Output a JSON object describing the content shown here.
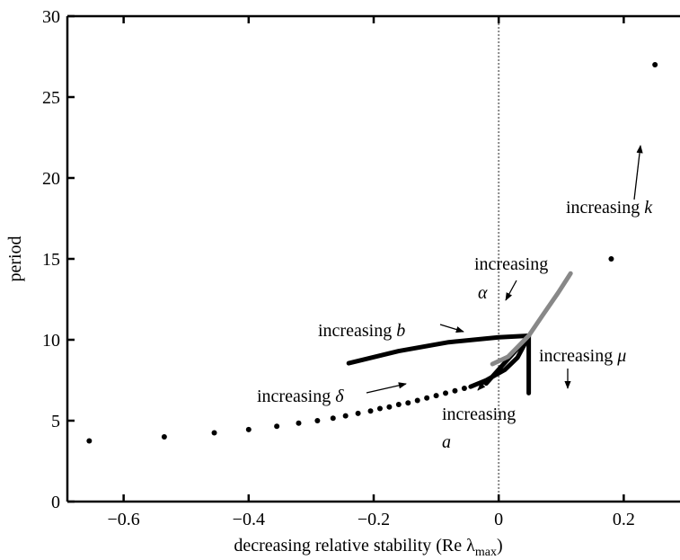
{
  "chart_data": {
    "type": "scatter",
    "xlabel": "decreasing relative stability (Re λ",
    "xlabel_sub": "max",
    "xlabel_close": ")",
    "ylabel": "period",
    "xlim": [
      -0.69,
      0.29
    ],
    "ylim": [
      0,
      30
    ],
    "xticks": [
      -0.6,
      -0.4,
      -0.2,
      0,
      0.2
    ],
    "xtick_labels": [
      "−0.6",
      "−0.4",
      "−0.2",
      "0",
      "0.2"
    ],
    "yticks": [
      0,
      5,
      10,
      15,
      20,
      25,
      30
    ],
    "ytick_labels": [
      "0",
      "5",
      "10",
      "15",
      "20",
      "25",
      "30"
    ],
    "grid": false,
    "reference_line": {
      "x": 0,
      "style": "dotted",
      "color": "#888888"
    },
    "series": [
      {
        "color": "#000000",
        "marker": "dot",
        "points": [
          [
            -0.655,
            3.75
          ],
          [
            -0.535,
            4.0
          ],
          [
            -0.455,
            4.25
          ],
          [
            -0.4,
            4.45
          ],
          [
            -0.355,
            4.65
          ],
          [
            -0.32,
            4.85
          ],
          [
            -0.29,
            5.0
          ],
          [
            -0.265,
            5.15
          ],
          [
            -0.245,
            5.3
          ],
          [
            -0.225,
            5.45
          ],
          [
            -0.205,
            5.6
          ],
          [
            -0.19,
            5.75
          ],
          [
            -0.175,
            5.85
          ],
          [
            -0.16,
            6.0
          ],
          [
            -0.145,
            6.1
          ],
          [
            -0.13,
            6.25
          ],
          [
            -0.115,
            6.4
          ],
          [
            -0.1,
            6.55
          ],
          [
            -0.085,
            6.7
          ],
          [
            -0.07,
            6.85
          ],
          [
            -0.055,
            7.0
          ]
        ]
      },
      {
        "color": "#000000",
        "marker": "dot",
        "points": [
          [
            0.18,
            15.0
          ],
          [
            0.25,
            27.0
          ]
        ]
      },
      {
        "color": "#000000",
        "marker": "line",
        "points": [
          [
            -0.045,
            7.1
          ],
          [
            -0.02,
            7.5
          ],
          [
            0.01,
            8.15
          ],
          [
            0.03,
            8.9
          ],
          [
            0.048,
            10.2
          ]
        ]
      },
      {
        "color": "#000000",
        "marker": "line",
        "points": [
          [
            -0.24,
            8.55
          ],
          [
            -0.16,
            9.3
          ],
          [
            -0.08,
            9.85
          ],
          [
            0.0,
            10.15
          ],
          [
            0.048,
            10.25
          ]
        ]
      },
      {
        "color": "#000000",
        "marker": "line",
        "points": [
          [
            0.048,
            10.25
          ],
          [
            0.048,
            6.7
          ]
        ]
      },
      {
        "color": "#000000",
        "marker": "line",
        "points": [
          [
            -0.02,
            7.3
          ],
          [
            0.045,
            10.1
          ]
        ]
      },
      {
        "color": "#888888",
        "marker": "line",
        "points": [
          [
            -0.01,
            8.5
          ],
          [
            0.015,
            8.95
          ],
          [
            0.048,
            10.25
          ],
          [
            0.07,
            11.5
          ],
          [
            0.095,
            12.9
          ],
          [
            0.115,
            14.1
          ]
        ]
      }
    ],
    "annotations": [
      {
        "id": "b",
        "text": "increasing",
        "symbol": "b"
      },
      {
        "id": "delta",
        "text": "increasing",
        "symbol": "δ"
      },
      {
        "id": "a",
        "text": "increasing",
        "symbol": "a"
      },
      {
        "id": "alpha",
        "text": "increasing",
        "symbol": "α"
      },
      {
        "id": "mu",
        "text": "increasing",
        "symbol": "μ"
      },
      {
        "id": "k",
        "text": "increasing",
        "symbol": "k"
      }
    ]
  }
}
